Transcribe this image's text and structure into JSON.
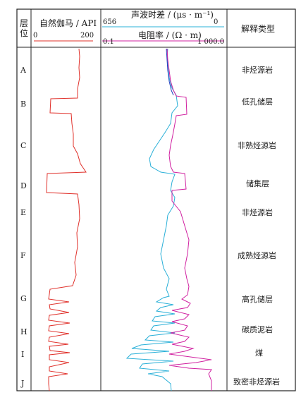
{
  "header": {
    "layer_col": "层位",
    "gr_title": "自然伽马 / API",
    "gr_min": "0",
    "gr_max": "200",
    "sonic_title": "声波时差 / (μs · m⁻¹)",
    "sonic_min": "656",
    "sonic_max": "0",
    "res_title": "电阻率 / (Ω · m)",
    "res_min": "0.1",
    "res_max": "1 000.0",
    "interp_col": "解释类型"
  },
  "rows": [
    {
      "layer": "A",
      "interp": "非烃源岩"
    },
    {
      "layer": "B",
      "interp": "低孔储层"
    },
    {
      "layer": "C",
      "interp": "非熟烃源岩"
    },
    {
      "layer": "D",
      "interp": "储集层"
    },
    {
      "layer": "E",
      "interp": "非烃源岩"
    },
    {
      "layer": "F",
      "interp": "成熟烃源岩"
    },
    {
      "layer": "G",
      "interp": "高孔储层"
    },
    {
      "layer": "H",
      "interp": "碳质泥岩"
    },
    {
      "layer": "I",
      "interp": "煤"
    },
    {
      "layer": "J",
      "interp": "致密非烃源岩"
    }
  ],
  "colors": {
    "gamma": "#e0302a",
    "sonic": "#2ab0d8",
    "resistivity": "#d020a0",
    "blue_trace": "#2040c0"
  }
}
